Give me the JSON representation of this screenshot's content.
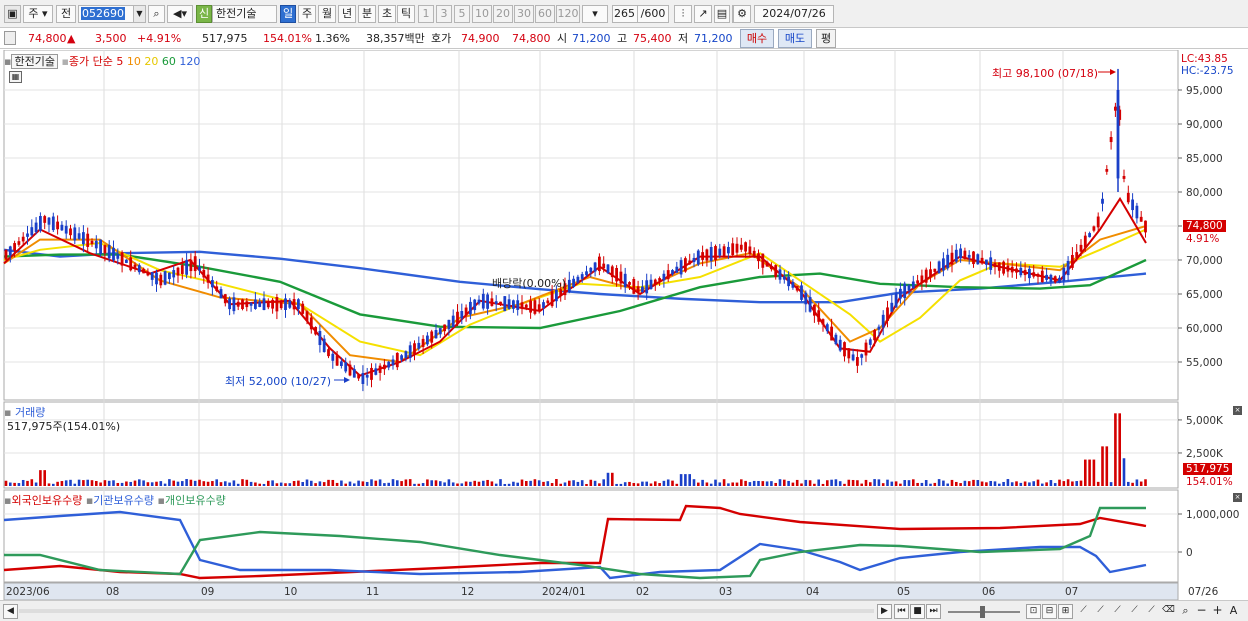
{
  "toolbar": {
    "market_type": "주",
    "stock_filter": "전",
    "stock_code": "052690",
    "new_badge": "신",
    "stock_name": "한전기술",
    "periods": [
      "일",
      "주",
      "월",
      "년",
      "분",
      "초",
      "틱"
    ],
    "active_period": "일",
    "intervals": [
      "1",
      "3",
      "5",
      "10",
      "20",
      "30",
      "60",
      "120"
    ],
    "count_value": "265",
    "count_max": "/600",
    "date": "2024/07/26"
  },
  "quote": {
    "price": "74,800",
    "up_arrow": "▲",
    "change": "3,500",
    "change_rate": "+4.91%",
    "volume": "517,975",
    "volume_ratio": "154.01%",
    "turnover": "1.36%",
    "amount": "38,357백만",
    "ask_label": "호가",
    "ask": "74,900",
    "bid": "74,800",
    "open_label": "시",
    "open": "71,200",
    "high_label": "고",
    "high": "75,400",
    "low_label": "저",
    "low": "71,200",
    "buy_button": "매수",
    "sell_button": "매도",
    "eval_button": "평"
  },
  "price_panel": {
    "legend_name": "한전기술",
    "legend_type": "종가 단순",
    "ma_periods": [
      "5",
      "10",
      "20",
      "60",
      "120"
    ],
    "lc_label": "LC:43.85",
    "hc_label": "HC:-23.75",
    "high_annotation": "최고 98,100 (07/18)",
    "low_annotation": "최저 52,000 (10/27)",
    "dividend_annotation": "배당락(0.00%)",
    "current_price_tag": "74,800",
    "current_rate_tag": "4.91%",
    "y_ticks": [
      "95,000",
      "90,000",
      "85,000",
      "80,000",
      "75,000",
      "70,000",
      "65,000",
      "60,000",
      "55,000"
    ]
  },
  "volume_panel": {
    "title": "거래량",
    "value_text": "517,975주(154.01%)",
    "y_ticks": [
      "5,000K",
      "2,500K"
    ],
    "current_tag": "517,975",
    "current_rate_tag": "154.01%"
  },
  "holdings_panel": {
    "legend_foreign": "외국인보유수량",
    "legend_institution": "기관보유수량",
    "legend_individual": "개인보유수량",
    "y_ticks": [
      "1,000,000",
      "0"
    ]
  },
  "x_axis": {
    "labels": [
      "2023/06",
      "08",
      "09",
      "10",
      "11",
      "12",
      "2024/01",
      "02",
      "03",
      "04",
      "05",
      "06",
      "07",
      "07/26"
    ]
  },
  "colors": {
    "ma5": "#d40000",
    "ma10": "#f08c00",
    "ma20": "#f5e000",
    "ma60": "#1a9a3a",
    "ma120": "#2f5fd8",
    "up": "#d40000",
    "down": "#1a3fc8",
    "foreign": "#d40000",
    "institution": "#2f5fd8",
    "individual": "#2e9a5a"
  }
}
